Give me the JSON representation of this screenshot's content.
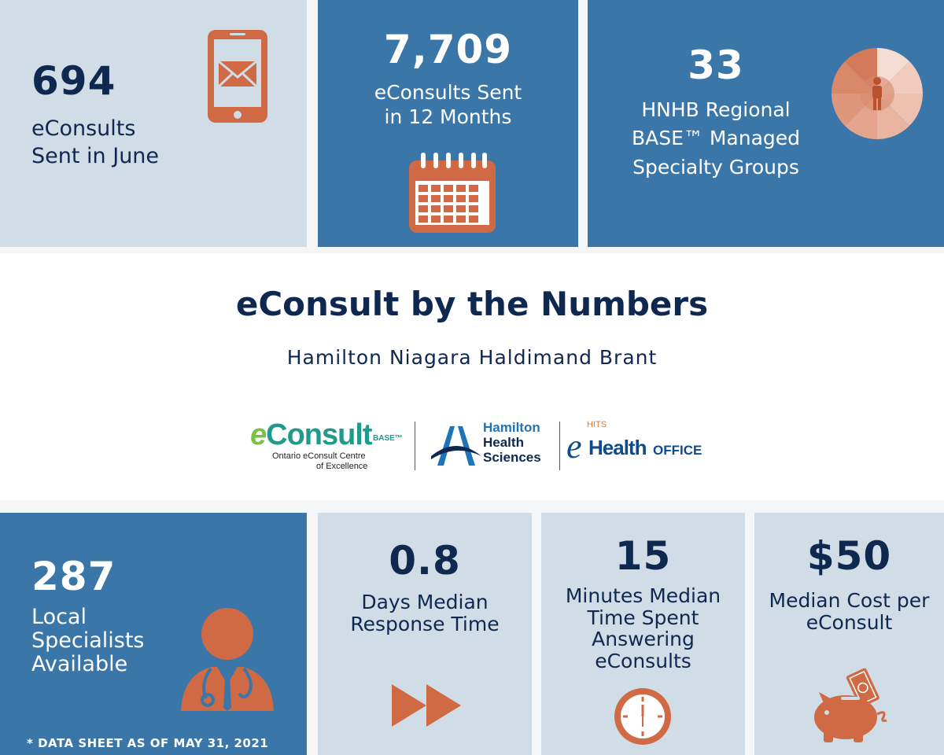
{
  "top_tiles": [
    {
      "number": "694",
      "label_line1": "eConsults",
      "label_line2": "Sent in June",
      "icon": "phone-mail-icon"
    },
    {
      "number": "7,709",
      "label_line1": "eConsults Sent",
      "label_line2": "in 12 Months",
      "icon": "calendar-icon"
    },
    {
      "number": "33",
      "label_line1": "HNHB Regional",
      "label_line2": "BASE™ Managed",
      "label_line3": "Specialty Groups",
      "icon": "specialty-wheel-icon"
    }
  ],
  "header": {
    "title": "eConsult by the Numbers",
    "subtitle": "Hamilton Niagara Haldimand Brant"
  },
  "logos": {
    "econsult_word_e": "e",
    "econsult_word_rest": "Consult",
    "econsult_base": "BASE™",
    "econsult_line1": "Ontario eConsult Centre",
    "econsult_line2": "of Excellence",
    "hhs_line1": "Hamilton",
    "hhs_line2": "Health",
    "hhs_line3": "Sciences",
    "hits": "HITS",
    "ehealth_e": "e",
    "ehealth_health": "Health",
    "ehealth_office": "OFFICE"
  },
  "bottom_tiles": [
    {
      "number": "287",
      "label_line1": "Local",
      "label_line2": "Specialists",
      "label_line3": "Available",
      "icon": "doctor-icon"
    },
    {
      "number": "0.8",
      "label_line1": "Days Median",
      "label_line2": "Response Time",
      "icon": "fast-forward-icon"
    },
    {
      "number": "15",
      "label_line1": "Minutes Median",
      "label_line2": "Time Spent",
      "label_line3": "Answering",
      "label_line4": "eConsults",
      "icon": "clock-icon"
    },
    {
      "number": "$50",
      "label_line1": "Median Cost per",
      "label_line2": "eConsult",
      "icon": "piggy-bank-icon"
    }
  ],
  "footnote": "* DATA SHEET AS OF MAY 31, 2021",
  "colors": {
    "dark_blue": "#3a76a8",
    "light_blue": "#d0dce6",
    "navy": "#0f2850",
    "orange": "#cf6a45"
  }
}
